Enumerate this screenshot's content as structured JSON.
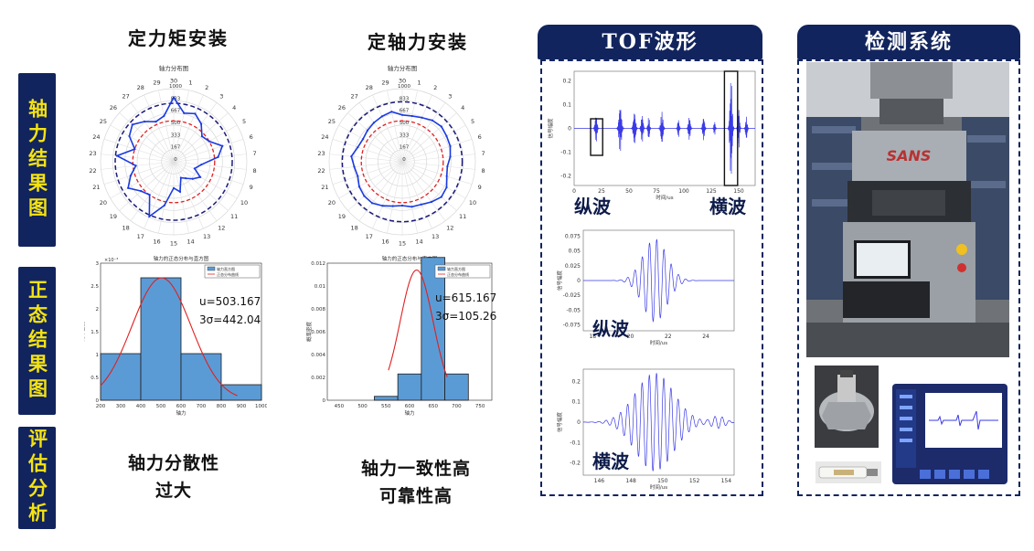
{
  "side_labels": [
    "轴力结果图",
    "正态结果图",
    "评估分析"
  ],
  "columns": {
    "left_title": "定力矩安装",
    "right_title": "定轴力安装"
  },
  "polar": {
    "title": "轴力分布图",
    "radial_ticks": [
      "1000",
      "833",
      "667",
      "500",
      "333",
      "167",
      "0"
    ],
    "angle_labels": [
      "1",
      "2",
      "3",
      "4",
      "5",
      "6",
      "7",
      "8",
      "9",
      "10",
      "11",
      "12",
      "13",
      "14",
      "15",
      "16",
      "17",
      "18",
      "19",
      "20",
      "21",
      "22",
      "23",
      "24",
      "25",
      "26",
      "27",
      "28",
      "29",
      "30"
    ]
  },
  "histograms": {
    "left": {
      "title": "轴力的正态分布与直方图",
      "xticks": [
        "200",
        "300",
        "400",
        "500",
        "600",
        "700",
        "800",
        "900",
        "1000"
      ],
      "yticks": [
        "0",
        "0.5",
        "1",
        "1.5",
        "2",
        "2.5",
        "3"
      ],
      "yexp": "×10⁻³",
      "ylabel": "概率密度",
      "xlabel": "轴力",
      "stat_u": "u=503.167",
      "stat_s": "3σ=442.04",
      "legend": [
        "轴力直方图",
        "正态分布曲线"
      ]
    },
    "right": {
      "title": "轴力的正态分布与直方图",
      "xticks": [
        "450",
        "500",
        "550",
        "600",
        "650",
        "700",
        "750"
      ],
      "yticks": [
        "0",
        "0.002",
        "0.004",
        "0.006",
        "0.008",
        "0.01",
        "0.012"
      ],
      "ylabel": "概率密度",
      "xlabel": "轴力",
      "stat_u": "u=615.167",
      "stat_s": "3σ=105.26",
      "legend": [
        "轴力直方图",
        "正态分布曲线"
      ]
    }
  },
  "verdicts": {
    "left_line1": "轴力分散性",
    "left_line2": "过大",
    "right_line1": "轴力一致性高",
    "right_line2": "可靠性高"
  },
  "tof": {
    "header": "TOF波形",
    "label_long": "纵波",
    "label_trans": "横波",
    "label_long2": "纵波",
    "label_trans2": "横波",
    "wave1": {
      "ylabel": "信号幅度",
      "xlabel": "时间/us",
      "yticks": [
        "0.2",
        "0.1",
        "0",
        "-0.1",
        "-0.2"
      ],
      "xticks": [
        "0",
        "25",
        "50",
        "75",
        "100",
        "125",
        "150"
      ]
    },
    "wave2": {
      "ylabel": "信号幅度",
      "xlabel": "时间/us",
      "yticks": [
        "0.075",
        "0.05",
        "0.025",
        "0",
        "-0.025",
        "-0.05",
        "-0.075"
      ],
      "xticks": [
        "18",
        "20",
        "22",
        "24"
      ]
    },
    "wave3": {
      "ylabel": "信号幅度",
      "xlabel": "时间/us",
      "yticks": [
        "0.2",
        "0.1",
        "0",
        "-0.1",
        "-0.2"
      ],
      "xticks": [
        "146",
        "148",
        "150",
        "152",
        "154"
      ]
    }
  },
  "system": {
    "header": "检测系统",
    "machine_brand": "SANS"
  },
  "colors": {
    "navy": "#12245e",
    "yellow": "#f4e312",
    "wave": "#3a3ae6",
    "hist": "#5b9bd5"
  }
}
